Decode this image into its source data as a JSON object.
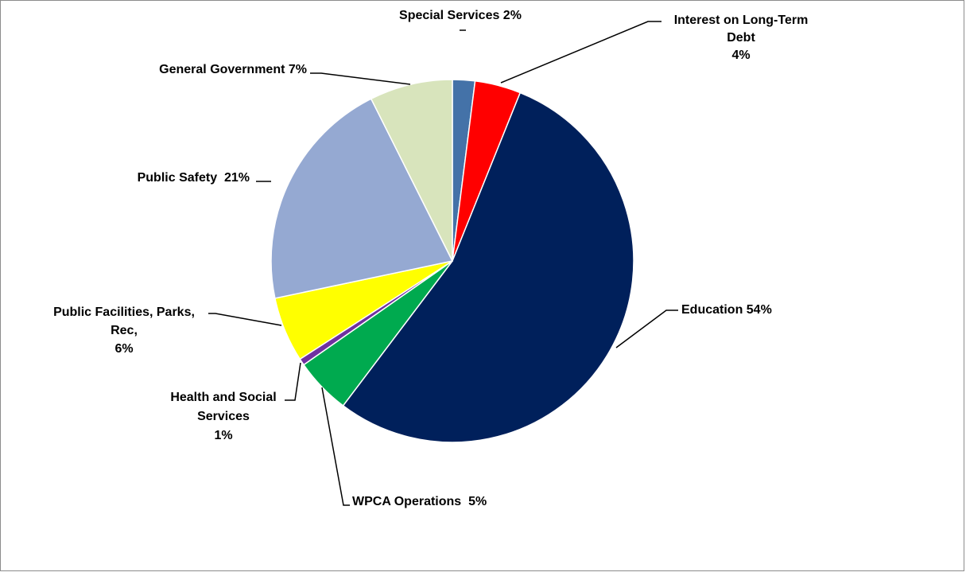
{
  "chart_data": {
    "type": "pie",
    "title": "",
    "slices": [
      {
        "name": "Special Services",
        "value": 2.0,
        "label_lines": [
          "Special Services 2%"
        ],
        "color": "#4472a8"
      },
      {
        "name": "Interest on Long-Term Debt",
        "value": 4.1,
        "label_lines": [
          "Interest on Long-Term",
          "Debt",
          "4%"
        ],
        "color": "#ff0000"
      },
      {
        "name": "Education",
        "value": 54.2,
        "label_lines": [
          "Education 54%"
        ],
        "color": "#00205b"
      },
      {
        "name": "WPCA Operations",
        "value": 5.0,
        "label_lines": [
          "WPCA Operations  5%"
        ],
        "color": "#00aa4f"
      },
      {
        "name": "Health and Social Services",
        "value": 0.6,
        "label_lines": [
          "Health and Social",
          "Services",
          "1%"
        ],
        "color": "#7030a0"
      },
      {
        "name": "Public Facilities, Parks, Rec",
        "value": 5.8,
        "label_lines": [
          "Public Facilities, Parks,",
          "Rec,",
          "6%"
        ],
        "color": "#ffff00"
      },
      {
        "name": "Public Safety",
        "value": 20.9,
        "label_lines": [
          "Public Safety  21%"
        ],
        "color": "#95a9d2"
      },
      {
        "name": "General Government",
        "value": 7.4,
        "label_lines": [
          "General Government 7%"
        ],
        "color": "#d8e4bc"
      }
    ]
  }
}
